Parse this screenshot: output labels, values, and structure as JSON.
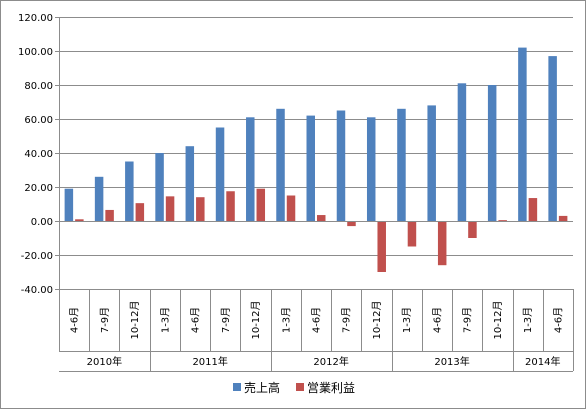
{
  "chart_data": {
    "type": "bar",
    "categories": [
      "4-6月",
      "7-9月",
      "10-12月",
      "1-3月",
      "4-6月",
      "7-9月",
      "10-12月",
      "1-3月",
      "4-6月",
      "7-9月",
      "10-12月",
      "1-3月",
      "4-6月",
      "7-9月",
      "10-12月",
      "1-3月",
      "4-6月"
    ],
    "year_groups": [
      {
        "label": "2010年",
        "start": 0,
        "count": 3
      },
      {
        "label": "2011年",
        "start": 3,
        "count": 4
      },
      {
        "label": "2012年",
        "start": 7,
        "count": 4
      },
      {
        "label": "2013年",
        "start": 11,
        "count": 4
      },
      {
        "label": "2014年",
        "start": 15,
        "count": 2
      }
    ],
    "series": [
      {
        "name": "売上高",
        "color": "#4f81bd",
        "values": [
          19,
          26,
          35,
          40,
          44,
          55,
          61,
          66,
          62,
          65,
          61,
          66,
          68,
          81,
          80,
          102,
          97
        ]
      },
      {
        "name": "営業利益",
        "color": "#c0504d",
        "values": [
          1,
          6.5,
          10.5,
          14.5,
          14,
          17.5,
          19,
          15,
          3.5,
          -3,
          -30,
          -15,
          -26,
          -10,
          0.5,
          13.5,
          3
        ]
      }
    ],
    "ylim": [
      -40,
      120
    ],
    "yticks": [
      "-40.00",
      "-20.00",
      "0.00",
      "20.00",
      "40.00",
      "60.00",
      "80.00",
      "100.00",
      "120.00"
    ],
    "grid": true,
    "legend_position": "bottom"
  }
}
